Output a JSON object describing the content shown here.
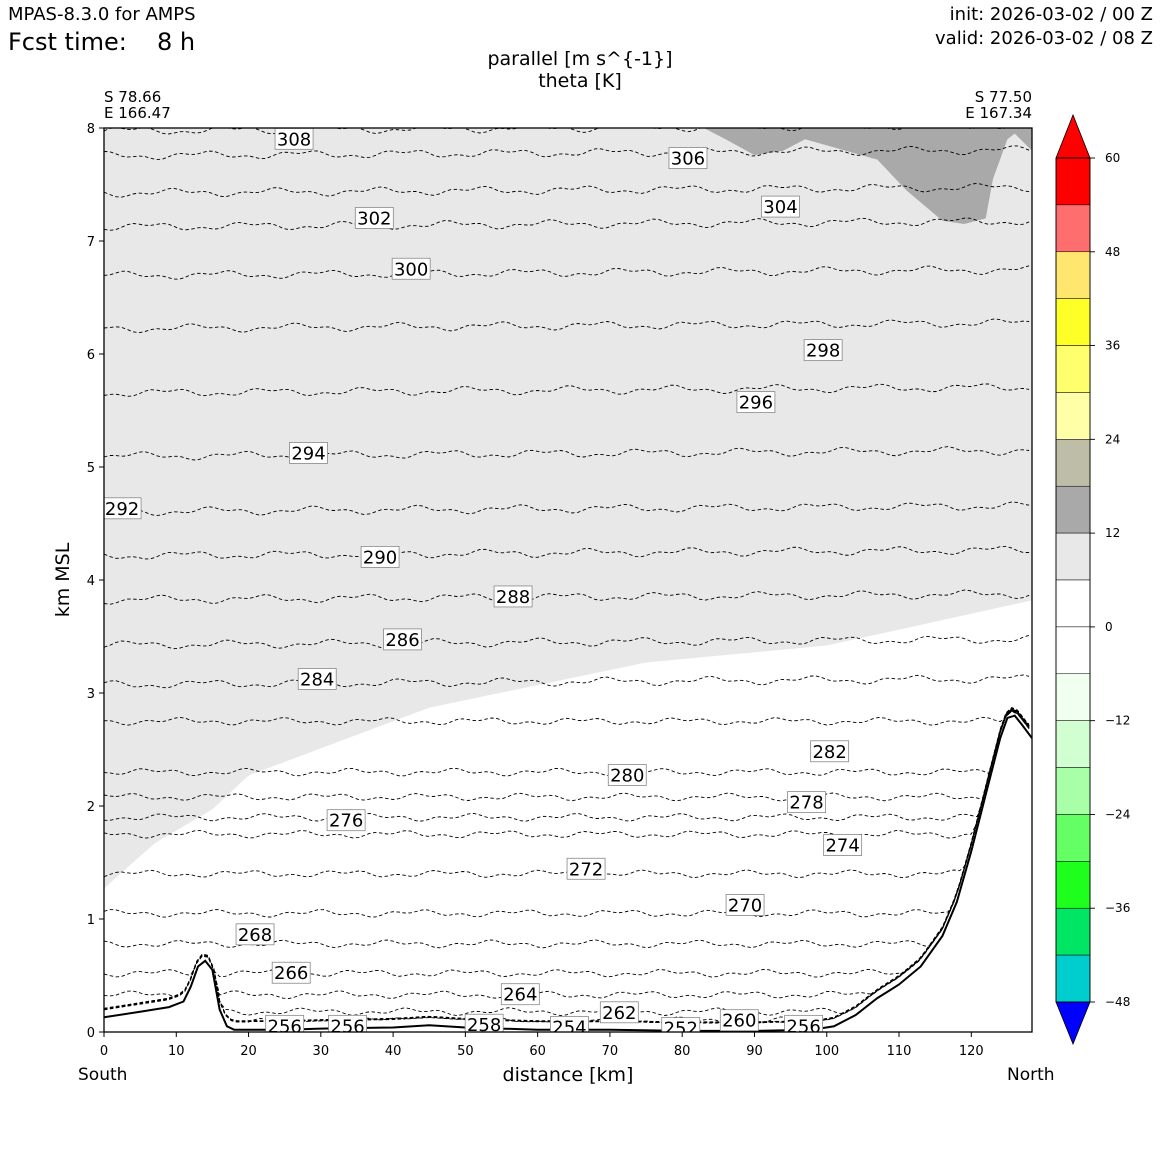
{
  "header": {
    "model": "MPAS-8.3.0 for AMPS",
    "fcst_label": "Fcst time:",
    "fcst_value": "8 h",
    "init": "init: 2026-03-02 / 00 Z",
    "valid": "valid: 2026-03-02 / 08 Z"
  },
  "colors": {
    "shade_light": "#e8e8e8",
    "shade_dark": "#a9a9a9",
    "terrain_line": "#000000",
    "contour": "#000000"
  },
  "chart_data": {
    "type": "cross-section",
    "title": [
      "parallel [m s^{-1}]",
      "theta [K]"
    ],
    "xlabel": "distance [km]",
    "ylabel": "km MSL",
    "xlim": [
      0,
      128.4
    ],
    "ylim": [
      0,
      8
    ],
    "xticks": [
      0,
      10,
      20,
      30,
      40,
      50,
      60,
      70,
      80,
      90,
      100,
      110,
      120
    ],
    "yticks": [
      0,
      1,
      2,
      3,
      4,
      5,
      6,
      7,
      8
    ],
    "endpoints": {
      "start": {
        "lat": "S 78.66",
        "lon": "E 166.47",
        "label": "South"
      },
      "end": {
        "lat": "S 77.50",
        "lon": "E 167.34",
        "label": "North"
      }
    },
    "terrain": {
      "x": [
        0,
        5,
        9,
        11,
        12,
        13,
        14,
        15,
        16,
        17,
        18,
        20,
        25,
        30,
        40,
        45,
        50,
        55,
        60,
        70,
        80,
        90,
        98,
        101,
        104,
        107,
        110,
        113,
        116,
        118,
        120,
        122,
        124,
        125,
        126,
        127,
        128.4
      ],
      "y": [
        0.13,
        0.18,
        0.22,
        0.27,
        0.4,
        0.58,
        0.63,
        0.55,
        0.2,
        0.05,
        0.02,
        0.02,
        0.02,
        0.03,
        0.04,
        0.06,
        0.04,
        0.03,
        0.02,
        0.02,
        0.01,
        0.01,
        0.02,
        0.05,
        0.15,
        0.3,
        0.42,
        0.58,
        0.85,
        1.15,
        1.6,
        2.1,
        2.6,
        2.78,
        2.8,
        2.72,
        2.6
      ]
    },
    "theta_contours": [
      {
        "level": 308,
        "base": 8.0,
        "label_x": 26.3,
        "label_y": 7.9
      },
      {
        "level": 306,
        "base": 7.78,
        "label_x": 80.8,
        "label_y": 7.73
      },
      {
        "level": 304,
        "base": 7.45,
        "label_x": 93.6,
        "label_y": 7.3
      },
      {
        "level": 302,
        "base": 7.15,
        "label_x": 37.4,
        "label_y": 7.2
      },
      {
        "level": 300,
        "base": 6.72,
        "label_x": 42.5,
        "label_y": 6.75
      },
      {
        "level": 298,
        "base": 6.25,
        "label_x": 99.5,
        "label_y": 6.03
      },
      {
        "level": 296,
        "base": 5.68,
        "label_x": 90.2,
        "label_y": 5.57
      },
      {
        "level": 294,
        "base": 5.12,
        "label_x": 28.3,
        "label_y": 5.12
      },
      {
        "level": 292,
        "base": 4.63,
        "label_x": 2.5,
        "label_y": 4.63
      },
      {
        "level": 290,
        "base": 4.24,
        "label_x": 38.2,
        "label_y": 4.2
      },
      {
        "level": 288,
        "base": 3.85,
        "label_x": 56.6,
        "label_y": 3.85
      },
      {
        "level": 286,
        "base": 3.45,
        "label_x": 41.3,
        "label_y": 3.47
      },
      {
        "level": 284,
        "base": 3.1,
        "label_x": 29.5,
        "label_y": 3.12
      },
      {
        "level": 282,
        "base": 2.75,
        "label_x": 100.4,
        "label_y": 2.48
      },
      {
        "level": 280,
        "base": 2.3,
        "label_x": 72.4,
        "label_y": 2.27
      },
      {
        "level": 278,
        "base": 2.08,
        "label_x": 97.2,
        "label_y": 2.03
      },
      {
        "level": 276,
        "base": 1.75,
        "label_x": 33.5,
        "label_y": 1.87
      },
      {
        "level": 274,
        "base": 1.9,
        "label_x": 102.2,
        "label_y": 1.65
      },
      {
        "level": 272,
        "base": 1.4,
        "label_x": 66.7,
        "label_y": 1.44
      },
      {
        "level": 270,
        "base": 1.05,
        "label_x": 88.7,
        "label_y": 1.12
      },
      {
        "level": 268,
        "base": 0.78,
        "label_x": 20.9,
        "label_y": 0.86
      },
      {
        "level": 266,
        "base": 0.52,
        "label_x": 25.9,
        "label_y": 0.52
      },
      {
        "level": 264,
        "base": 0.33,
        "label_x": 57.6,
        "label_y": 0.33
      },
      {
        "level": 262,
        "base": 0.18,
        "label_x": 71.3,
        "label_y": 0.17
      },
      {
        "level": 260,
        "base": 0.1,
        "label_x": 87.9,
        "label_y": 0.1
      },
      {
        "level": 258,
        "base": 0.07,
        "label_x": 52.6,
        "label_y": 0.06
      },
      {
        "level": 256,
        "base": 0.05,
        "label_x": 25.0,
        "label_y": 0.05
      },
      {
        "level": 256,
        "base": 0.05,
        "label_x": 33.7,
        "label_y": 0.05
      },
      {
        "level": 256,
        "base": 0.05,
        "label_x": 96.8,
        "label_y": 0.05
      },
      {
        "level": 254,
        "base": 0.04,
        "label_x": 64.4,
        "label_y": 0.04
      },
      {
        "level": 252,
        "base": 0.03,
        "label_x": 79.8,
        "label_y": 0.03
      }
    ],
    "colorbar": {
      "ticks": [
        60,
        48,
        36,
        24,
        12,
        0,
        -12,
        -24,
        -36,
        -48
      ],
      "tick_labels": [
        "60",
        "48",
        "36",
        "24",
        "12",
        "0",
        "−12",
        "−24",
        "−36",
        "−48"
      ],
      "bounds": [
        60,
        54,
        48,
        42,
        36,
        30,
        24,
        18,
        12,
        6,
        0,
        -6,
        -12,
        -18,
        -24,
        -30,
        -36,
        -42,
        -48
      ],
      "colors": [
        "#ff0000",
        "#ff6e6e",
        "#ffe66e",
        "#ffff28",
        "#ffff6e",
        "#ffffa8",
        "#bebea8",
        "#a9a9a9",
        "#e8e8e8",
        "#ffffff",
        "#ffffff",
        "#f0fff0",
        "#d2ffd2",
        "#a8ffa8",
        "#64ff64",
        "#1eff1e",
        "#00e664",
        "#00cdcd"
      ],
      "over_color": "#ff0000",
      "under_color": "#0000ff",
      "last_band_color": "#0000ff"
    }
  }
}
